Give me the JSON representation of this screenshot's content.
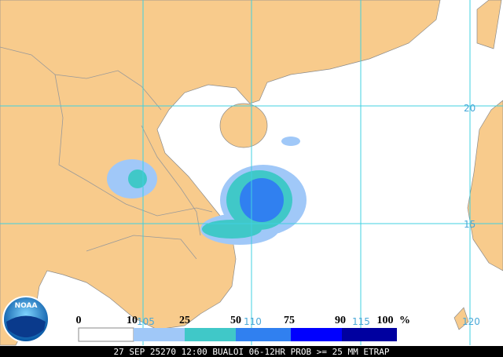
{
  "map": {
    "legend": {
      "levels": [
        0,
        10,
        25,
        50,
        75,
        90,
        100
      ],
      "unit": "%"
    },
    "grid": {
      "latitudes": [
        20,
        15
      ],
      "longitudes": [
        105,
        110,
        115,
        120
      ]
    },
    "caption": "27 SEP 25270 12:00 BUALOI 06-12HR PROB >= 25 MM ETRAP",
    "logo": "NOAA"
  }
}
